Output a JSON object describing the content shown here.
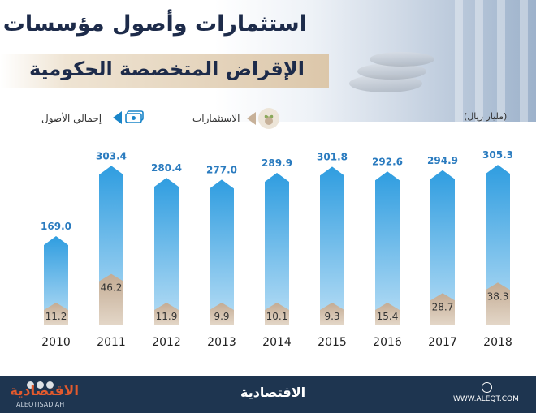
{
  "header": {
    "title": "استثمارات وأصول مؤسسات",
    "subtitle": "الإقراض المتخصصة الحكومية"
  },
  "unit": "(مليار ريال)",
  "legend": {
    "series_1": "الاستثمارات",
    "series_2": "إجمالي الأصول"
  },
  "colors": {
    "total_assets": "#1a85c9",
    "investments": "#c7b199",
    "navy": "#1d2b4a",
    "footer": "#1e3550"
  },
  "icons": [
    "plant-coin-icon",
    "money-icon",
    "globe-icon"
  ],
  "chart_data": {
    "type": "bar",
    "categories": [
      "2010",
      "2011",
      "2012",
      "2013",
      "2014",
      "2015",
      "2016",
      "2017",
      "2018"
    ],
    "series": [
      {
        "name": "إجمالي الأصول",
        "values": [
          169.0,
          303.4,
          280.4,
          277.0,
          289.9,
          301.8,
          292.6,
          294.9,
          305.3
        ]
      },
      {
        "name": "الاستثمارات",
        "values": [
          11.2,
          46.2,
          11.9,
          9.9,
          10.1,
          9.3,
          15.4,
          28.7,
          38.3
        ]
      }
    ],
    "value_labels": {
      "total_assets": [
        "169.0",
        "303.4",
        "280.4",
        "277.0",
        "289.9",
        "301.8",
        "292.6",
        "294.9",
        "305.3"
      ],
      "investments": [
        "11.2",
        "46.2",
        "11.9",
        "9.9",
        "10.1",
        "9.3",
        "15.4",
        "28.7",
        "38.3"
      ]
    },
    "grid": false,
    "legend_position": "top"
  },
  "footer": {
    "brand_left": "الاقتصادية",
    "brand_left_latin": "ALEQTISADIAH",
    "brand_center": "الاقتصادية",
    "website": "WWW.ALEQT.COM"
  }
}
